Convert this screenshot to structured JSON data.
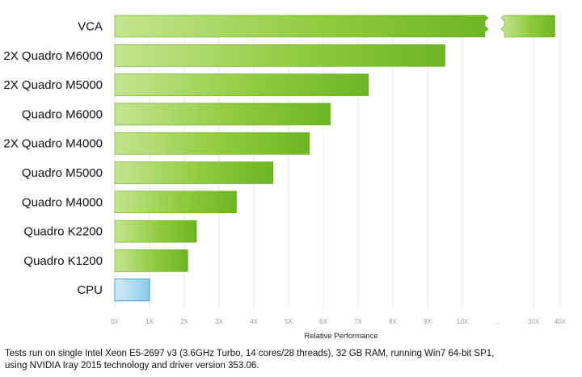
{
  "chart_data": {
    "type": "bar",
    "orientation": "horizontal",
    "xlabel": "Relative Performance",
    "categories": [
      "VCA",
      "2X Quadro M6000",
      "2X Quadro M5000",
      "Quadro M6000",
      "2X Quadro M4000",
      "Quadro M5000",
      "Quadro M4000",
      "Quadro K2200",
      "Quadro K1200",
      "CPU"
    ],
    "values": [
      38,
      9.5,
      7.3,
      6.2,
      5.6,
      4.55,
      3.5,
      2.35,
      2.1,
      1.0
    ],
    "highlight_category": "CPU",
    "x_ticks": [
      "0X",
      "1X",
      "2X",
      "3X",
      "4X",
      "5X",
      "6X",
      "7X",
      "8X",
      "9X",
      "10X",
      "...",
      "30X",
      "40X"
    ],
    "axis_break": {
      "from": 10.6,
      "to": 29.5,
      "marker": "..."
    },
    "colors": {
      "bar": "#7bc12a",
      "bar_light": "#c3e58f",
      "bar_dark": "#5ea61a",
      "cpu_bar": "#9dd4ec",
      "cpu_light": "#d3ecf8",
      "cpu_edge": "#3d9fcf",
      "grid": "#e6e6e6"
    }
  },
  "footnote": {
    "line1": "Tests run on single Intel Xeon E5-2697 v3 (3.6GHz Turbo, 14 cores/28 threads), 32 GB RAM, running Win7 64-bit SP1,",
    "line2": "using NVIDIA Iray 2015 technology and driver version 353.06."
  }
}
